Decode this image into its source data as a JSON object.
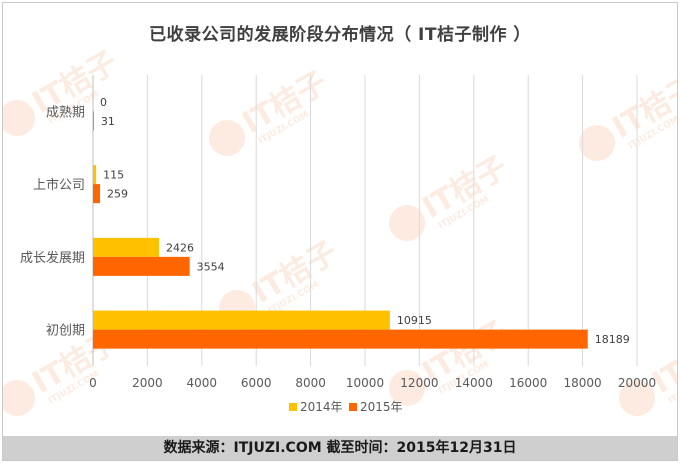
{
  "chart_data": {
    "type": "bar",
    "orientation": "horizontal",
    "title": "已收录公司的发展阶段分布情况（ IT桔子制作 ）",
    "categories": [
      "成熟期",
      "上市公司",
      "成长发展期",
      "初创期"
    ],
    "series": [
      {
        "name": "2014年",
        "values": [
          0,
          115,
          2426,
          10915
        ],
        "color": "#ffc000"
      },
      {
        "name": "2015年",
        "values": [
          31,
          259,
          3554,
          18189
        ],
        "color": "#ff6600"
      }
    ],
    "xlim": [
      0,
      20000
    ],
    "xticks": [
      0,
      2000,
      4000,
      6000,
      8000,
      10000,
      12000,
      14000,
      16000,
      18000,
      20000
    ],
    "grid": true,
    "legend": "bottom"
  },
  "footer": {
    "text": "数据来源：ITJUZI.COM  截至时间：2015年12月31日"
  },
  "watermark": {
    "text": "IT桔子",
    "subtext": "ITJUZI.COM"
  }
}
